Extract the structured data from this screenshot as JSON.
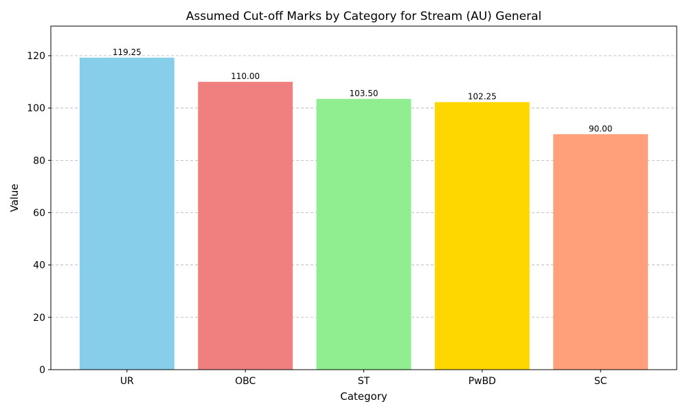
{
  "chart_data": {
    "type": "bar",
    "title": "Assumed Cut-off Marks by Category for Stream (AU) General",
    "xlabel": "Category",
    "ylabel": "Value",
    "categories": [
      "UR",
      "OBC",
      "ST",
      "PwBD",
      "SC"
    ],
    "values": [
      119.25,
      110.0,
      103.5,
      102.25,
      90.0
    ],
    "value_labels": [
      "119.25",
      "110.00",
      "103.50",
      "102.25",
      "90.00"
    ],
    "colors": [
      "#87CEEB",
      "#F08080",
      "#90EE90",
      "#FFD700",
      "#FFA07A"
    ],
    "ylim": [
      0,
      131.3
    ],
    "yticks": [
      0,
      20,
      40,
      60,
      80,
      100,
      120
    ],
    "grid": "y-dashed",
    "legend": "none"
  }
}
